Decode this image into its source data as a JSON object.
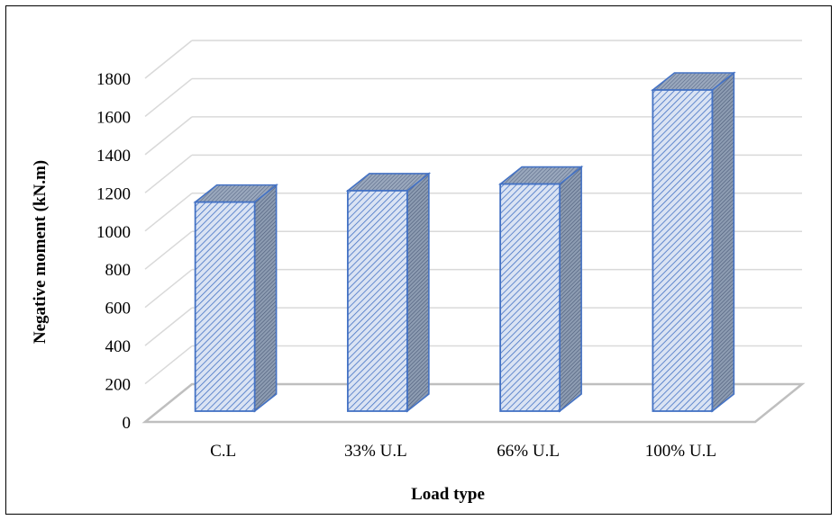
{
  "chart_data": {
    "type": "bar",
    "style": "3d-column",
    "categories": [
      "C.L",
      "33% U.L",
      "66% U.L",
      "100% U.L"
    ],
    "series": [
      {
        "values": [
          1100,
          1160,
          1195,
          1690
        ]
      }
    ],
    "xlabel": "Load type",
    "ylabel": "Negative moment  (kN.m)",
    "ylim": [
      0,
      1800
    ],
    "yticks": [
      0,
      200,
      400,
      600,
      800,
      1000,
      1200,
      1400,
      1600,
      1800
    ],
    "grid": true,
    "legend": "none",
    "colors": {
      "bar_front": "#dae3f3",
      "bar_hatch": "#4472c4",
      "bar_edge": "#4472c4",
      "bar_side": "#7f8fa6",
      "grid": "#d9d9d9",
      "floor": "#bfbfbf"
    }
  }
}
